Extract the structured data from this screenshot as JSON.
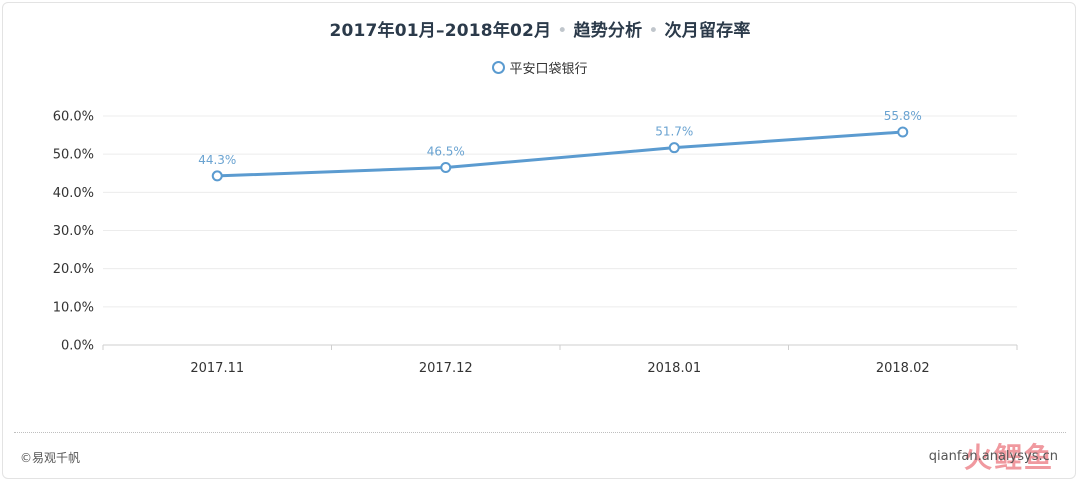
{
  "header": {
    "period": "2017年01月–2018年02月",
    "section": "趋势分析",
    "metric": "次月留存率"
  },
  "legend": {
    "label": "平安口袋银行"
  },
  "footer": {
    "copyright": "©易观千帆",
    "site": "qianfan.analysys.cn",
    "watermark": "火鲤鱼"
  },
  "colors": {
    "series": "#5b9bd0",
    "label": "#6aa3d1",
    "grid": "#ececec",
    "axis": "#cfcfcf"
  },
  "chart_data": {
    "type": "line",
    "categories": [
      "2017.11",
      "2017.12",
      "2018.01",
      "2018.02"
    ],
    "series": [
      {
        "name": "平安口袋银行",
        "values": [
          44.3,
          46.5,
          51.7,
          55.8
        ],
        "labels": [
          "44.3%",
          "46.5%",
          "51.7%",
          "55.8%"
        ]
      }
    ],
    "ylim": [
      0,
      60
    ],
    "yticks": [
      0,
      10,
      20,
      30,
      40,
      50,
      60
    ],
    "yticklabels": [
      "0.0%",
      "10.0%",
      "20.0%",
      "30.0%",
      "40.0%",
      "50.0%",
      "60.0%"
    ],
    "grid": true,
    "legend": "top-center"
  }
}
